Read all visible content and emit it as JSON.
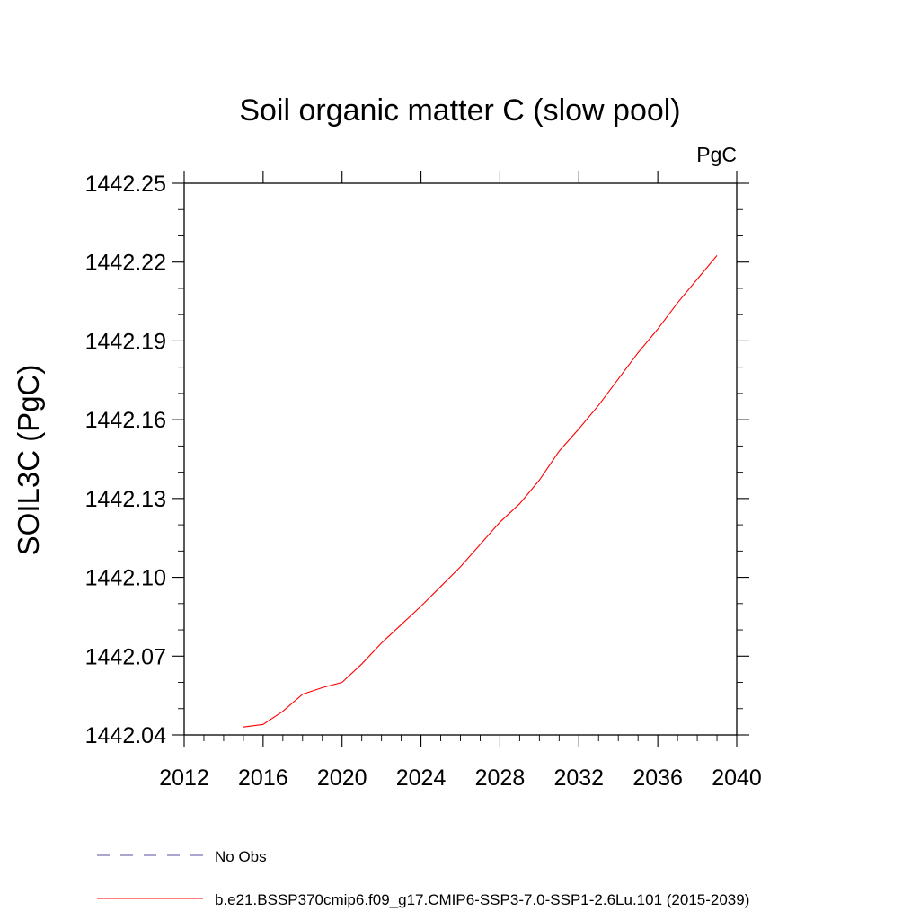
{
  "chart_data": {
    "type": "line",
    "title": "Soil organic matter C (slow pool)",
    "units_label": "PgC",
    "ylabel": "SOIL3C  (PgC)",
    "xlabel": "",
    "xlim": [
      2012,
      2040
    ],
    "ylim": [
      1442.04,
      1442.25
    ],
    "xticks": [
      "2012",
      "2016",
      "2020",
      "2024",
      "2028",
      "2032",
      "2036",
      "2040"
    ],
    "yticks": [
      "1442.04",
      "1442.07",
      "1442.10",
      "1442.13",
      "1442.16",
      "1442.19",
      "1442.22",
      "1442.25"
    ],
    "grid": false,
    "legend_position": "bottom",
    "legend": [
      {
        "label": "No Obs",
        "color": "#5a4b9c",
        "style": "dashed"
      },
      {
        "label": "b.e21.BSSP370cmip6.f09_g17.CMIP6-SSP3-7.0-SSP1-2.6Lu.101 (2015-2039)",
        "color": "#ff0000",
        "style": "solid"
      }
    ],
    "series": [
      {
        "name": "b.e21.BSSP370cmip6.f09_g17.CMIP6-SSP3-7.0-SSP1-2.6Lu.101 (2015-2039)",
        "color": "#ff0000",
        "x": [
          2015,
          2016,
          2017,
          2018,
          2019,
          2020,
          2021,
          2022,
          2023,
          2024,
          2025,
          2026,
          2027,
          2028,
          2029,
          2030,
          2031,
          2032,
          2033,
          2034,
          2035,
          2036,
          2037,
          2038,
          2039
        ],
        "y": [
          1442.043,
          1442.044,
          1442.049,
          1442.0555,
          1442.058,
          1442.06,
          1442.067,
          1442.075,
          1442.082,
          1442.089,
          1442.0965,
          1442.104,
          1442.1125,
          1442.121,
          1442.128,
          1442.137,
          1442.148,
          1442.1565,
          1442.1655,
          1442.1755,
          1442.1855,
          1442.1945,
          1442.2045,
          1442.2135,
          1442.2225
        ]
      }
    ]
  }
}
